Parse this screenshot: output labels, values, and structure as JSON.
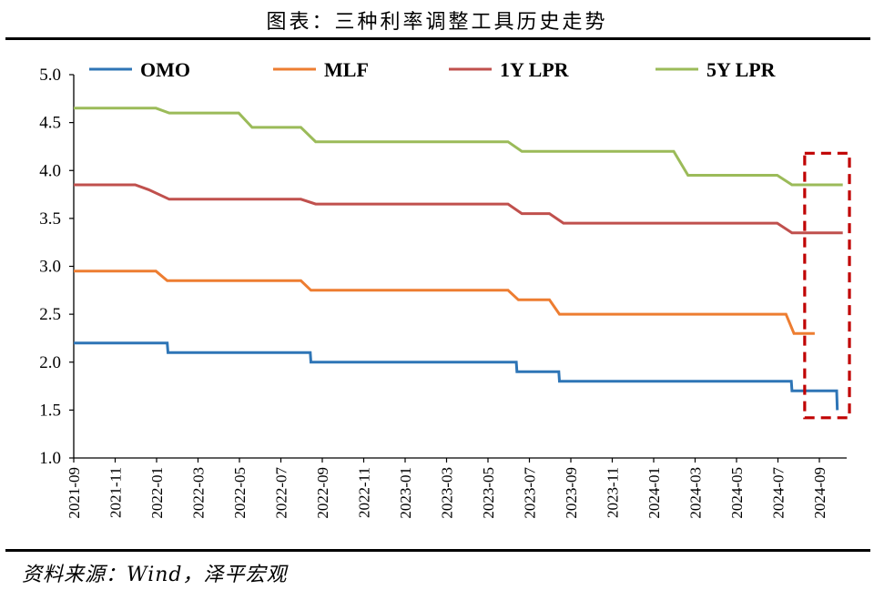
{
  "page": {
    "title": "图表：三种利率调整工具历史走势",
    "source": "资料来源：Wind，泽平宏观"
  },
  "chart_data": {
    "type": "line",
    "title": "图表：三种利率调整工具历史走势",
    "xlabel": "",
    "ylabel": "",
    "ylim": [
      1.0,
      5.0
    ],
    "yticks": [
      "1.0",
      "1.5",
      "2.0",
      "2.5",
      "3.0",
      "3.5",
      "4.0",
      "4.5",
      "5.0"
    ],
    "x_range": [
      "2021-09",
      "2024-10"
    ],
    "x_tick_labels": [
      "2021-09",
      "2021-11",
      "2022-01",
      "2022-03",
      "2022-05",
      "2022-07",
      "2022-09",
      "2022-11",
      "2023-01",
      "2023-03",
      "2023-05",
      "2023-07",
      "2023-09",
      "2023-11",
      "2024-01",
      "2024-03",
      "2024-05",
      "2024-07",
      "2024-09"
    ],
    "grid": false,
    "legend": "top",
    "series": [
      {
        "name": "OMO",
        "color": "#2E75B6",
        "points": [
          [
            "2021-09-01",
            2.2
          ],
          [
            "2022-01-17",
            2.2
          ],
          [
            "2022-01-18",
            2.1
          ],
          [
            "2022-08-14",
            2.1
          ],
          [
            "2022-08-15",
            2.0
          ],
          [
            "2023-06-12",
            2.0
          ],
          [
            "2023-06-13",
            1.9
          ],
          [
            "2023-08-14",
            1.9
          ],
          [
            "2023-08-15",
            1.8
          ],
          [
            "2024-07-21",
            1.8
          ],
          [
            "2024-07-22",
            1.7
          ],
          [
            "2024-09-26",
            1.7
          ],
          [
            "2024-09-27",
            1.5
          ]
        ]
      },
      {
        "name": "MLF",
        "color": "#ED7D31",
        "points": [
          [
            "2021-09-01",
            2.95
          ],
          [
            "2021-12-31",
            2.95
          ],
          [
            "2022-01-17",
            2.85
          ],
          [
            "2022-07-31",
            2.85
          ],
          [
            "2022-08-15",
            2.75
          ],
          [
            "2023-05-31",
            2.75
          ],
          [
            "2023-06-15",
            2.65
          ],
          [
            "2023-07-31",
            2.65
          ],
          [
            "2023-08-15",
            2.5
          ],
          [
            "2024-07-13",
            2.5
          ],
          [
            "2024-07-25",
            2.3
          ],
          [
            "2024-08-25",
            2.3
          ]
        ]
      },
      {
        "name": "1Y LPR",
        "color": "#C0504D",
        "points": [
          [
            "2021-09-01",
            3.85
          ],
          [
            "2021-11-30",
            3.85
          ],
          [
            "2021-12-20",
            3.8
          ],
          [
            "2022-01-20",
            3.7
          ],
          [
            "2022-07-31",
            3.7
          ],
          [
            "2022-08-22",
            3.65
          ],
          [
            "2023-05-31",
            3.65
          ],
          [
            "2023-06-20",
            3.55
          ],
          [
            "2023-07-31",
            3.55
          ],
          [
            "2023-08-21",
            3.45
          ],
          [
            "2024-06-30",
            3.45
          ],
          [
            "2024-07-22",
            3.35
          ],
          [
            "2024-10-05",
            3.35
          ]
        ]
      },
      {
        "name": "5Y LPR",
        "color": "#9BBB59",
        "points": [
          [
            "2021-09-01",
            4.65
          ],
          [
            "2021-12-31",
            4.65
          ],
          [
            "2022-01-20",
            4.6
          ],
          [
            "2022-04-30",
            4.6
          ],
          [
            "2022-05-20",
            4.45
          ],
          [
            "2022-07-31",
            4.45
          ],
          [
            "2022-08-22",
            4.3
          ],
          [
            "2023-05-31",
            4.3
          ],
          [
            "2023-06-20",
            4.2
          ],
          [
            "2024-01-31",
            4.2
          ],
          [
            "2024-02-20",
            3.95
          ],
          [
            "2024-06-30",
            3.95
          ],
          [
            "2024-07-22",
            3.85
          ],
          [
            "2024-10-05",
            3.85
          ]
        ]
      }
    ],
    "annotation": {
      "type": "dashed-rectangle",
      "color": "#C00000",
      "x_range": [
        "2024-08-10",
        "2024-10-15"
      ],
      "y_range": [
        1.42,
        4.18
      ]
    }
  }
}
